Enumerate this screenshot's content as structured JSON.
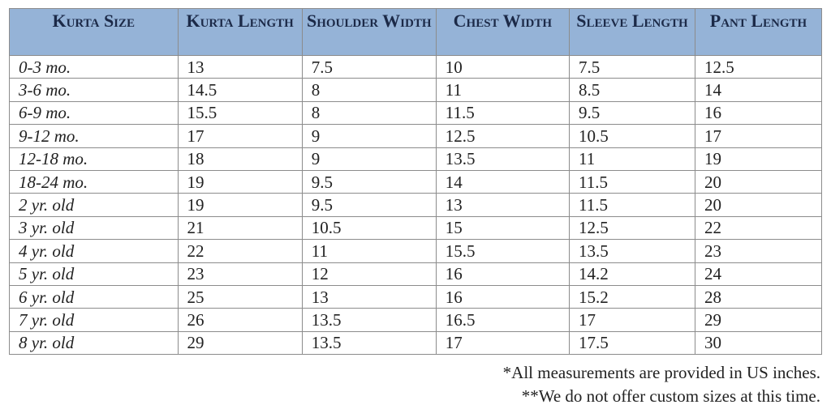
{
  "headers": [
    "Kurta Size",
    "Kurta Length",
    "Shoulder Width",
    "Chest Width",
    "Sleeve Length",
    "Pant Length"
  ],
  "header_bg": "#95b3d7",
  "rows": [
    [
      "0-3 mo.",
      "13",
      "7.5",
      "10",
      "7.5",
      "12.5"
    ],
    [
      "3-6 mo.",
      "14.5",
      "8",
      "11",
      "8.5",
      "14"
    ],
    [
      "6-9 mo.",
      "15.5",
      "8",
      "11.5",
      "9.5",
      "16"
    ],
    [
      "9-12 mo.",
      "17",
      "9",
      "12.5",
      "10.5",
      "17"
    ],
    [
      "12-18 mo.",
      "18",
      "9",
      "13.5",
      "11",
      "19"
    ],
    [
      "18-24 mo.",
      "19",
      "9.5",
      "14",
      "11.5",
      "20"
    ],
    [
      "2 yr. old",
      "19",
      "9.5",
      "13",
      "11.5",
      "20"
    ],
    [
      "3 yr. old",
      "21",
      "10.5",
      "15",
      "12.5",
      "22"
    ],
    [
      "4 yr. old",
      "22",
      "11",
      "15.5",
      "13.5",
      "23"
    ],
    [
      "5 yr. old",
      "23",
      "12",
      "16",
      "14.2",
      "24"
    ],
    [
      "6 yr. old",
      "25",
      "13",
      "16",
      "15.2",
      "28"
    ],
    [
      "7 yr. old",
      "26",
      "13.5",
      "16.5",
      "17",
      "29"
    ],
    [
      "8 yr. old",
      "29",
      "13.5",
      "17",
      "17.5",
      "30"
    ]
  ],
  "notes": [
    "*All measurements are provided in US inches.",
    "**We do not offer custom sizes at this time."
  ]
}
